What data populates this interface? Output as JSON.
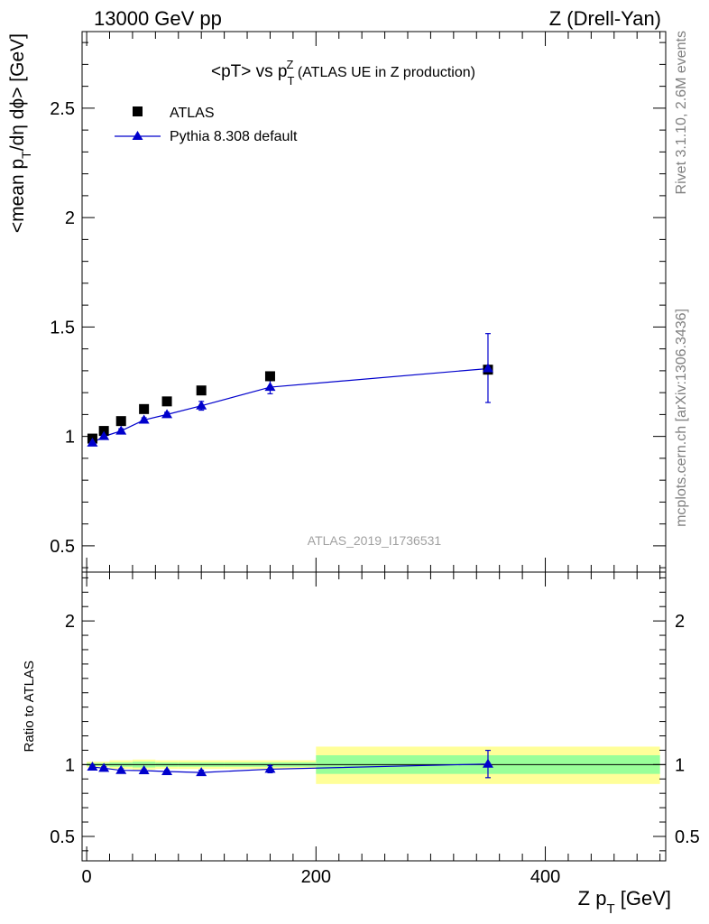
{
  "header": {
    "left": "13000 GeV pp",
    "right": "Z (Drell-Yan)"
  },
  "side_labels": {
    "rivet": "Rivet 3.1.10,  2.6M events",
    "mcplots": "mcplots.cern.ch [arXiv:1306.3436]"
  },
  "chart_data": [
    {
      "type": "scatter",
      "title_parts": {
        "a": "<pT> vs p",
        "sub": "T",
        "sup": "Z",
        "b": " (ATLAS UE in Z production)"
      },
      "ylabel_parts": {
        "a": "<mean p",
        "sub": "T",
        "b": "/dη dϕ> [GeV]"
      },
      "watermark": "ATLAS_2019_I1736531",
      "xlim": [
        -4,
        505
      ],
      "ylim": [
        0.38,
        2.85
      ],
      "yticks": [
        0.5,
        1,
        1.5,
        2,
        2.5
      ],
      "ytick_labels": [
        "0.5",
        "1",
        "1.5",
        "2",
        "2.5"
      ],
      "legend_position": "top-left",
      "series": [
        {
          "name": "ATLAS",
          "marker": "square",
          "color": "#000000",
          "x": [
            5,
            15,
            30,
            50,
            70,
            100,
            160,
            350
          ],
          "y": [
            0.99,
            1.025,
            1.07,
            1.125,
            1.16,
            1.21,
            1.275,
            1.305
          ]
        },
        {
          "name": "Pythia 8.308 default",
          "marker": "triangle",
          "line": true,
          "color": "#0000cc",
          "x": [
            5,
            15,
            30,
            50,
            70,
            100,
            160,
            350
          ],
          "y": [
            0.97,
            1.0,
            1.025,
            1.075,
            1.1,
            1.14,
            1.225,
            1.31
          ],
          "err_low": [
            0.01,
            0.01,
            0.01,
            0.01,
            0.01,
            0.02,
            0.03,
            0.155
          ],
          "err_high": [
            0.01,
            0.01,
            0.01,
            0.01,
            0.01,
            0.02,
            0.03,
            0.16
          ]
        }
      ]
    },
    {
      "type": "line",
      "ylabel": "Ratio to ATLAS",
      "xlabel_parts": {
        "a": "Z p",
        "sub": "T",
        "b": " [GeV]"
      },
      "xlim": [
        -4,
        505
      ],
      "ylim": [
        0.33,
        2.34
      ],
      "yticks": [
        0.5,
        1,
        2
      ],
      "ytick_labels": [
        "0.5",
        "1",
        "2"
      ],
      "xticks": [
        0,
        200,
        400
      ],
      "xtick_labels": [
        "0",
        "200",
        "400"
      ],
      "reference_line": 1,
      "bands": [
        {
          "x0": 0,
          "x1": 20,
          "yellow": [
            0.98,
            1.02
          ],
          "green": [
            0.99,
            1.01
          ]
        },
        {
          "x0": 20,
          "x1": 40,
          "yellow": [
            0.97,
            1.03
          ],
          "green": [
            0.985,
            1.015
          ]
        },
        {
          "x0": 40,
          "x1": 60,
          "yellow": [
            0.965,
            1.035
          ],
          "green": [
            0.98,
            1.02
          ]
        },
        {
          "x0": 60,
          "x1": 80,
          "yellow": [
            0.97,
            1.03
          ],
          "green": [
            0.985,
            1.015
          ]
        },
        {
          "x0": 80,
          "x1": 120,
          "yellow": [
            0.97,
            1.03
          ],
          "green": [
            0.985,
            1.015
          ]
        },
        {
          "x0": 120,
          "x1": 200,
          "yellow": [
            0.97,
            1.03
          ],
          "green": [
            0.985,
            1.015
          ]
        },
        {
          "x0": 200,
          "x1": 500,
          "yellow": [
            0.865,
            1.125
          ],
          "green": [
            0.935,
            1.065
          ]
        }
      ],
      "series": [
        {
          "name": "Pythia 8.308 default",
          "marker": "triangle",
          "color": "#0000cc",
          "x": [
            5,
            15,
            30,
            50,
            70,
            100,
            160,
            350
          ],
          "y": [
            0.983,
            0.975,
            0.96,
            0.958,
            0.952,
            0.945,
            0.968,
            1.004
          ],
          "err_low": [
            0.01,
            0.01,
            0.01,
            0.01,
            0.01,
            0.015,
            0.025,
            0.095
          ],
          "err_high": [
            0.01,
            0.01,
            0.01,
            0.01,
            0.01,
            0.015,
            0.025,
            0.095
          ]
        }
      ]
    }
  ]
}
